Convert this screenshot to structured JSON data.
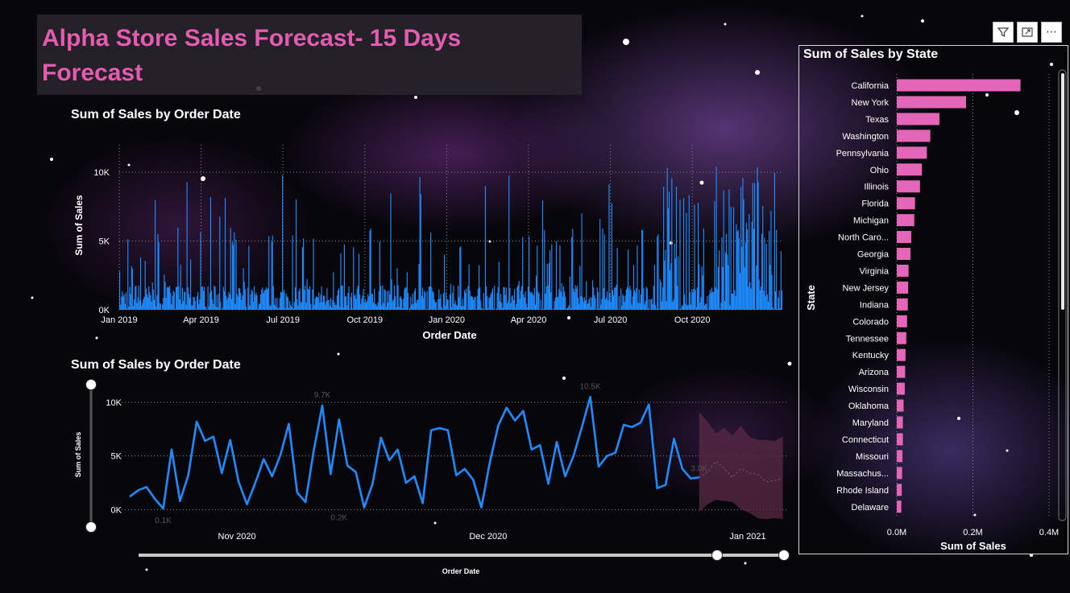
{
  "report": {
    "title": "Alpha Store Sales Forecast- 15 Days Forecast"
  },
  "colors": {
    "line": "#1e8cff",
    "bar": "#e466b8",
    "title": "#e45cb0",
    "forecast_band": "#5a2a44"
  },
  "toolbar": {
    "icons": [
      "filter-icon",
      "focus-mode-icon",
      "more-options-icon"
    ],
    "more_glyph": "⋯"
  },
  "chart_data": [
    {
      "type": "bar",
      "title": "Sum of Sales by Order Date",
      "xlabel": "Order Date",
      "ylabel": "Sum of Sales",
      "x_tick_labels": [
        "Jan 2019",
        "Apr 2019",
        "Jul 2019",
        "Oct 2019",
        "Jan 2020",
        "Apr 2020",
        "Jul 2020",
        "Oct 2020"
      ],
      "y_tick_labels": [
        "0K",
        "5K",
        "10K"
      ],
      "ylim": [
        0,
        12000
      ],
      "x_range": [
        "2019-01-01",
        "2020-12-30"
      ],
      "grid": true,
      "note": "Daily sales bars; values follow a spiky daily pattern between 0 and about 11K."
    },
    {
      "type": "line",
      "title": "Sum of Sales by Order Date",
      "xlabel": "Order Date",
      "ylabel": "Sum of Sales",
      "x_tick_labels": [
        "Nov 2020",
        "Dec 2020",
        "Jan 2021"
      ],
      "y_tick_labels": [
        "0K",
        "5K",
        "10K"
      ],
      "ylim": [
        -500,
        11500
      ],
      "x_start": "2020-10-19",
      "series": [
        {
          "values": [
            1200,
            1800,
            2100,
            1000,
            100,
            5600,
            800,
            3200,
            8200,
            6400,
            6800,
            3400,
            6500,
            2600,
            500,
            2500,
            4700,
            3100,
            5100,
            8000,
            1600,
            700,
            5600,
            9700,
            3300,
            8400,
            4100,
            3500,
            200,
            2400,
            6700,
            4600,
            5600,
            2500,
            3100,
            600,
            7400,
            7600,
            7400,
            3200,
            3800,
            2800,
            200,
            4400,
            7800,
            9500,
            8300,
            9200,
            5600,
            6000,
            2400,
            6300,
            3100,
            5000,
            7700,
            10500,
            4000,
            5000,
            5300,
            7900,
            7700,
            8100,
            9800,
            2000,
            2300,
            6600,
            3800,
            2900,
            3000
          ]
        }
      ],
      "forecast": {
        "upper": [
          9100,
          8200,
          7100,
          7600,
          6900,
          7800,
          6800,
          6500,
          6500,
          6400,
          6800
        ],
        "lower": [
          -200,
          500,
          900,
          800,
          700,
          0,
          -300,
          -800,
          -900,
          -800,
          -900
        ],
        "mid": [
          3000,
          3500,
          4500,
          3800,
          3000,
          3800,
          3400,
          3300,
          2600,
          2700,
          2900
        ]
      },
      "data_labels": [
        "9.7K",
        "10.5K",
        "0.1K",
        "0.2K",
        "3.0K"
      ],
      "grid": true
    },
    {
      "type": "bar",
      "orientation": "horizontal",
      "title": "Sum of Sales by State",
      "xlabel": "Sum of Sales",
      "ylabel": "State",
      "x_tick_labels": [
        "0.0M",
        "0.2M",
        "0.4M"
      ],
      "xlim": [
        0,
        400000
      ],
      "categories": [
        "California",
        "New York",
        "Texas",
        "Washington",
        "Pennsylvania",
        "Ohio",
        "Illinois",
        "Florida",
        "Michigan",
        "North Caro...",
        "Georgia",
        "Virginia",
        "New Jersey",
        "Indiana",
        "Colorado",
        "Tennessee",
        "Kentucky",
        "Arizona",
        "Wisconsin",
        "Oklahoma",
        "Maryland",
        "Connecticut",
        "Missouri",
        "Massachus...",
        "Rhode Island",
        "Delaware"
      ],
      "values": [
        325000,
        182000,
        112000,
        88000,
        79000,
        66000,
        61000,
        48000,
        46000,
        38000,
        36000,
        31000,
        30000,
        29000,
        27000,
        25000,
        23000,
        22000,
        21000,
        18000,
        16000,
        16000,
        15000,
        14000,
        13000,
        12000
      ],
      "grid": true
    }
  ]
}
